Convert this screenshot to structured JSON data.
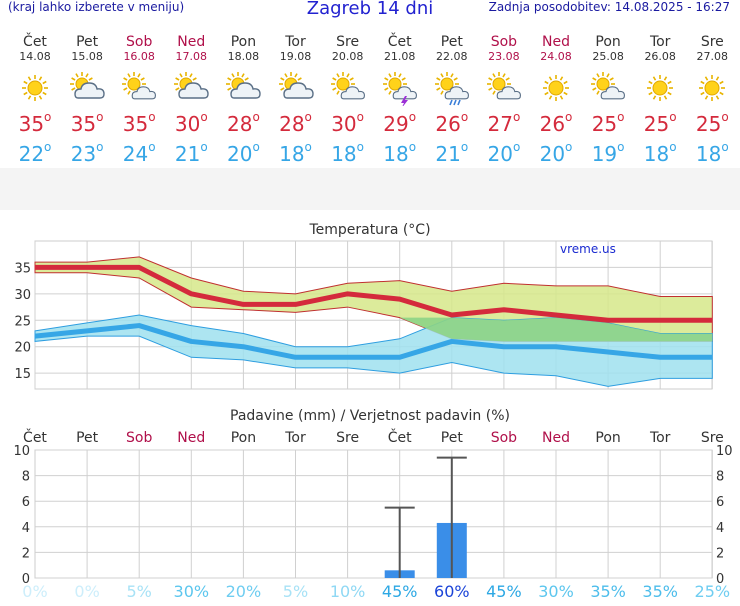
{
  "header": {
    "hint": "(kraj lahko izberete v meniju)",
    "title": "Zagreb 14 dni",
    "updated": "Zadnja posodobitev: 14.08.2025 - 16:27"
  },
  "days": [
    {
      "name": "Čet",
      "date": "14.08",
      "weekend": false,
      "icon": "sun-icon",
      "max": "35",
      "min": "22"
    },
    {
      "name": "Pet",
      "date": "15.08",
      "weekend": false,
      "icon": "sun-cloud-icon",
      "max": "35",
      "min": "23"
    },
    {
      "name": "Sob",
      "date": "16.08",
      "weekend": true,
      "icon": "sun-small-cloud-icon",
      "max": "35",
      "min": "24"
    },
    {
      "name": "Ned",
      "date": "17.08",
      "weekend": true,
      "icon": "sun-cloud-icon",
      "max": "30",
      "min": "21"
    },
    {
      "name": "Pon",
      "date": "18.08",
      "weekend": false,
      "icon": "sun-cloud-icon",
      "max": "28",
      "min": "20"
    },
    {
      "name": "Tor",
      "date": "19.08",
      "weekend": false,
      "icon": "sun-cloud-icon",
      "max": "28",
      "min": "18"
    },
    {
      "name": "Sre",
      "date": "20.08",
      "weekend": false,
      "icon": "sun-small-cloud-icon",
      "max": "30",
      "min": "18"
    },
    {
      "name": "Čet",
      "date": "21.08",
      "weekend": false,
      "icon": "sun-thunder-icon",
      "max": "29",
      "min": "18"
    },
    {
      "name": "Pet",
      "date": "22.08",
      "weekend": false,
      "icon": "sun-rain-icon",
      "max": "26",
      "min": "21"
    },
    {
      "name": "Sob",
      "date": "23.08",
      "weekend": true,
      "icon": "sun-small-cloud-icon",
      "max": "27",
      "min": "20"
    },
    {
      "name": "Ned",
      "date": "24.08",
      "weekend": true,
      "icon": "sun-icon",
      "max": "26",
      "min": "20"
    },
    {
      "name": "Pon",
      "date": "25.08",
      "weekend": false,
      "icon": "sun-small-cloud-icon",
      "max": "25",
      "min": "19"
    },
    {
      "name": "Tor",
      "date": "26.08",
      "weekend": false,
      "icon": "sun-icon",
      "max": "25",
      "min": "18"
    },
    {
      "name": "Sre",
      "date": "27.08",
      "weekend": false,
      "icon": "sun-icon",
      "max": "25",
      "min": "18"
    }
  ],
  "degree_symbol": "o",
  "colors": {
    "max": "#d42a3c",
    "min": "#36a6e6",
    "weekend": "#b0104a",
    "max_band": "#d6e88a",
    "min_band": "#9fe0ef",
    "overlap_band": "#8dd486",
    "bar": "#3a8ee8",
    "grid": "#d0d0d0"
  },
  "chart_data": [
    {
      "type": "line",
      "title": "Temperatura (°C)",
      "watermark": "vreme.us",
      "categories": [
        "Čet",
        "Pet",
        "Sob",
        "Ned",
        "Pon",
        "Tor",
        "Sre",
        "Čet",
        "Pet",
        "Sob",
        "Ned",
        "Pon",
        "Tor",
        "Sre"
      ],
      "ylim": [
        12,
        40
      ],
      "yticks": [
        15,
        20,
        25,
        30,
        35
      ],
      "grid": true,
      "series": [
        {
          "values": [
            35,
            35,
            35,
            30,
            28,
            28,
            30,
            29,
            26,
            27,
            26,
            25,
            25,
            25
          ]
        },
        {
          "values": [
            22,
            23,
            24,
            21,
            20,
            18,
            18,
            18,
            21,
            20,
            20,
            19,
            18,
            18
          ]
        }
      ],
      "max_range": {
        "upper": [
          36,
          36,
          37,
          33,
          30.5,
          30,
          32,
          32.5,
          30.5,
          32,
          31.5,
          31.5,
          29.5,
          29.5
        ],
        "lower": [
          34,
          34,
          33,
          27.5,
          27,
          26.5,
          27.5,
          25.5,
          21.5,
          21,
          21,
          21,
          21,
          21
        ]
      },
      "min_range": {
        "upper": [
          23,
          24.5,
          26,
          24,
          22.5,
          20,
          20,
          21.5,
          25.5,
          25,
          25.5,
          24.5,
          22.5,
          22.5
        ],
        "lower": [
          21,
          22,
          22,
          18,
          17.5,
          16,
          16,
          15,
          17,
          15,
          14.5,
          12.5,
          14,
          14
        ]
      }
    },
    {
      "type": "bar",
      "title": "Padavine (mm) / Verjetnost padavin (%)",
      "categories": [
        "Čet",
        "Pet",
        "Sob",
        "Ned",
        "Pon",
        "Tor",
        "Sre",
        "Čet",
        "Pet",
        "Sob",
        "Ned",
        "Pon",
        "Tor",
        "Sre"
      ],
      "weekend": [
        false,
        false,
        true,
        true,
        false,
        false,
        false,
        false,
        false,
        true,
        true,
        false,
        false,
        false
      ],
      "values": [
        0,
        0,
        0,
        0,
        0,
        0,
        0,
        0.6,
        4.3,
        0,
        0,
        0,
        0,
        0
      ],
      "error_upper": [
        null,
        null,
        null,
        null,
        null,
        null,
        null,
        5.5,
        9.4,
        null,
        null,
        null,
        null,
        null
      ],
      "ylim": [
        0,
        10
      ],
      "yticks": [
        0,
        2,
        4,
        6,
        8,
        10
      ],
      "probability": [
        "0%",
        "0%",
        "5%",
        "30%",
        "20%",
        "5%",
        "10%",
        "45%",
        "60%",
        "45%",
        "30%",
        "35%",
        "35%",
        "25%"
      ],
      "probability_colors": [
        "#cdeefb",
        "#cdeefb",
        "#a8e2f6",
        "#5cc6ee",
        "#6fcdf1",
        "#a8e2f6",
        "#8fd8f4",
        "#2da8e4",
        "#1b44d8",
        "#2da8e4",
        "#5cc6ee",
        "#4dbdeb",
        "#4dbdeb",
        "#6fcdf1"
      ]
    }
  ]
}
